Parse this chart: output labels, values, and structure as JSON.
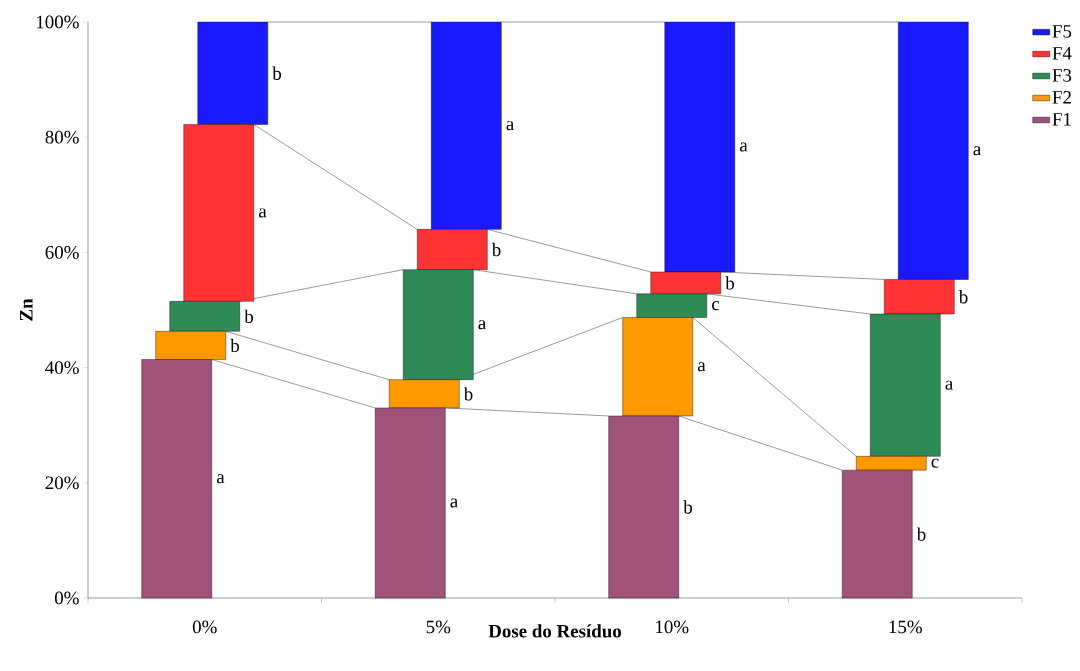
{
  "chart_data": {
    "type": "bar",
    "stacked": true,
    "xlabel": "Dose do Resíduo",
    "ylabel": "Zn",
    "categories": [
      "0%",
      "5%",
      "10%",
      "15%"
    ],
    "series": [
      {
        "name": "F1",
        "color": "#a0527a",
        "values": [
          41.4,
          33.0,
          31.6,
          22.2
        ],
        "value_labels": [
          "a",
          "a",
          "b",
          "b"
        ]
      },
      {
        "name": "F2",
        "color": "#ff9900",
        "values": [
          4.9,
          4.9,
          17.1,
          2.4
        ],
        "value_labels": [
          "b",
          "b",
          "a",
          "c"
        ]
      },
      {
        "name": "F3",
        "color": "#2e8b57",
        "values": [
          5.2,
          19.1,
          4.1,
          24.7
        ],
        "value_labels": [
          "b",
          "a",
          "c",
          "a"
        ]
      },
      {
        "name": "F4",
        "color": "#ff3333",
        "values": [
          30.7,
          7.0,
          3.8,
          6.0
        ],
        "value_labels": [
          "a",
          "b",
          "b",
          "b"
        ]
      },
      {
        "name": "F5",
        "color": "#1a1aff",
        "values": [
          17.8,
          36.0,
          43.4,
          44.7
        ],
        "value_labels": [
          "b",
          "a",
          "a",
          "a"
        ]
      }
    ],
    "ylim": [
      0,
      100
    ],
    "yticks": [
      {
        "value": 0,
        "label": "0%"
      },
      {
        "value": 20,
        "label": "20%"
      },
      {
        "value": 40,
        "label": "40%"
      },
      {
        "value": 60,
        "label": "60%"
      },
      {
        "value": 80,
        "label": "80%"
      },
      {
        "value": 100,
        "label": "100%"
      }
    ],
    "legend": "top right"
  }
}
